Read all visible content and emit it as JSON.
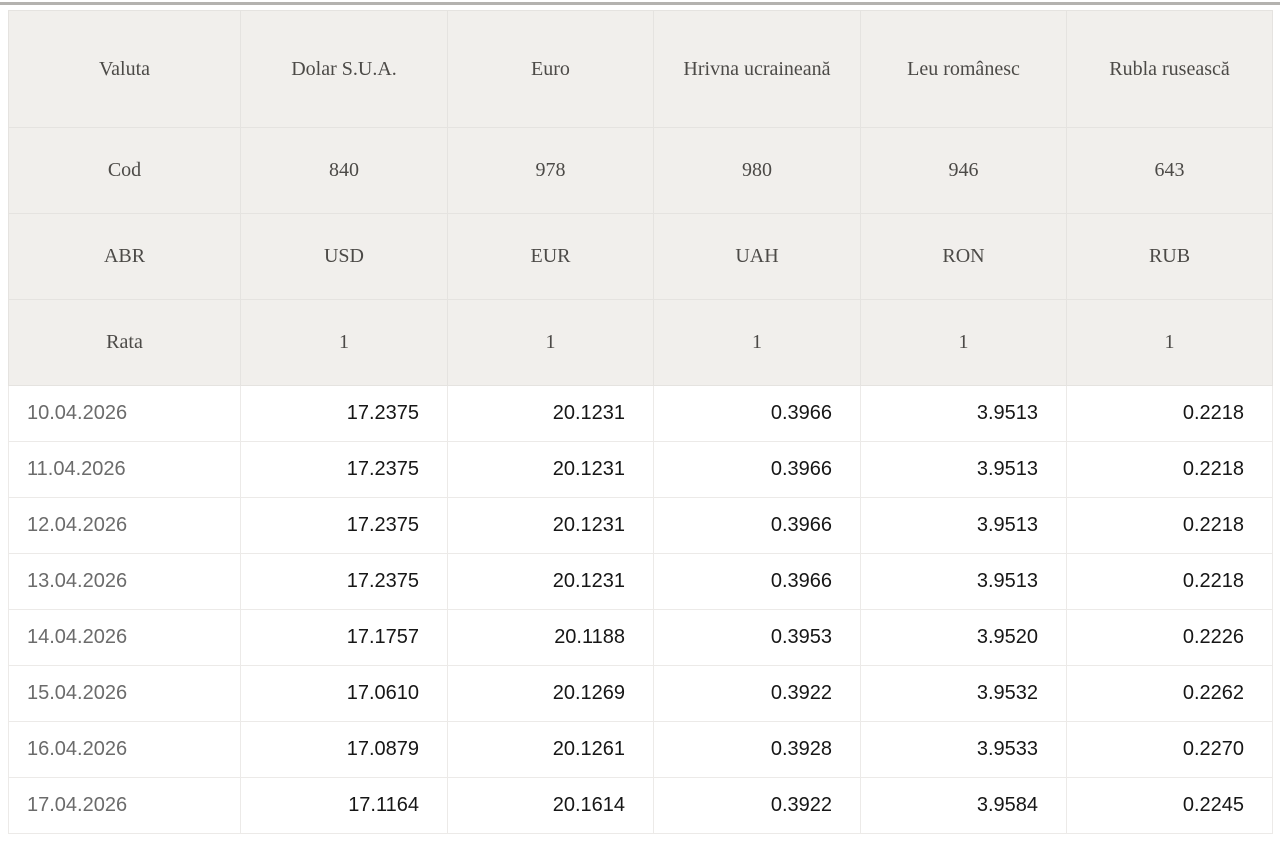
{
  "accent_colors": {
    "top_rule": "#b4b2af",
    "meta_cell_background": "#f1efec",
    "grid_line": "#e5e3e0",
    "meta_text": "#4c4a47",
    "date_text": "#6b6b6b",
    "value_text": "#161616"
  },
  "table": {
    "header_row": {
      "label": "Valuta",
      "cells": [
        "Dolar S.U.A.",
        "Euro",
        "Hrivna ucraineană",
        "Leu românesc",
        "Rubla rusească"
      ]
    },
    "meta_rows": [
      {
        "label": "Cod",
        "cells": [
          "840",
          "978",
          "980",
          "946",
          "643"
        ]
      },
      {
        "label": "ABR",
        "cells": [
          "USD",
          "EUR",
          "UAH",
          "RON",
          "RUB"
        ]
      },
      {
        "label": "Rata",
        "cells": [
          "1",
          "1",
          "1",
          "1",
          "1"
        ]
      }
    ],
    "data_rows": [
      {
        "date": "10.04.2026",
        "values": [
          "17.2375",
          "20.1231",
          "0.3966",
          "3.9513",
          "0.2218"
        ]
      },
      {
        "date": "11.04.2026",
        "values": [
          "17.2375",
          "20.1231",
          "0.3966",
          "3.9513",
          "0.2218"
        ]
      },
      {
        "date": "12.04.2026",
        "values": [
          "17.2375",
          "20.1231",
          "0.3966",
          "3.9513",
          "0.2218"
        ]
      },
      {
        "date": "13.04.2026",
        "values": [
          "17.2375",
          "20.1231",
          "0.3966",
          "3.9513",
          "0.2218"
        ]
      },
      {
        "date": "14.04.2026",
        "values": [
          "17.1757",
          "20.1188",
          "0.3953",
          "3.9520",
          "0.2226"
        ]
      },
      {
        "date": "15.04.2026",
        "values": [
          "17.0610",
          "20.1269",
          "0.3922",
          "3.9532",
          "0.2262"
        ]
      },
      {
        "date": "16.04.2026",
        "values": [
          "17.0879",
          "20.1261",
          "0.3928",
          "3.9533",
          "0.2270"
        ]
      },
      {
        "date": "17.04.2026",
        "values": [
          "17.1164",
          "20.1614",
          "0.3922",
          "3.9584",
          "0.2245"
        ]
      }
    ]
  },
  "chart_data": {
    "type": "table",
    "title": "",
    "columns": [
      "Valuta",
      "Dolar S.U.A.",
      "Euro",
      "Hrivna ucraineană",
      "Leu românesc",
      "Rubla rusească"
    ],
    "rows": [
      [
        "Cod",
        "840",
        "978",
        "980",
        "946",
        "643"
      ],
      [
        "ABR",
        "USD",
        "EUR",
        "UAH",
        "RON",
        "RUB"
      ],
      [
        "Rata",
        "1",
        "1",
        "1",
        "1",
        "1"
      ],
      [
        "10.04.2026",
        "17.2375",
        "20.1231",
        "0.3966",
        "3.9513",
        "0.2218"
      ],
      [
        "11.04.2026",
        "17.2375",
        "20.1231",
        "0.3966",
        "3.9513",
        "0.2218"
      ],
      [
        "12.04.2026",
        "17.2375",
        "20.1231",
        "0.3966",
        "3.9513",
        "0.2218"
      ],
      [
        "13.04.2026",
        "17.2375",
        "20.1231",
        "0.3966",
        "3.9513",
        "0.2218"
      ],
      [
        "14.04.2026",
        "17.1757",
        "20.1188",
        "0.3953",
        "3.9520",
        "0.2226"
      ],
      [
        "15.04.2026",
        "17.0610",
        "20.1269",
        "0.3922",
        "3.9532",
        "0.2262"
      ],
      [
        "16.04.2026",
        "17.0879",
        "20.1261",
        "0.3928",
        "3.9533",
        "0.2270"
      ],
      [
        "17.04.2026",
        "17.1164",
        "20.1614",
        "0.3922",
        "3.9584",
        "0.2245"
      ]
    ]
  }
}
